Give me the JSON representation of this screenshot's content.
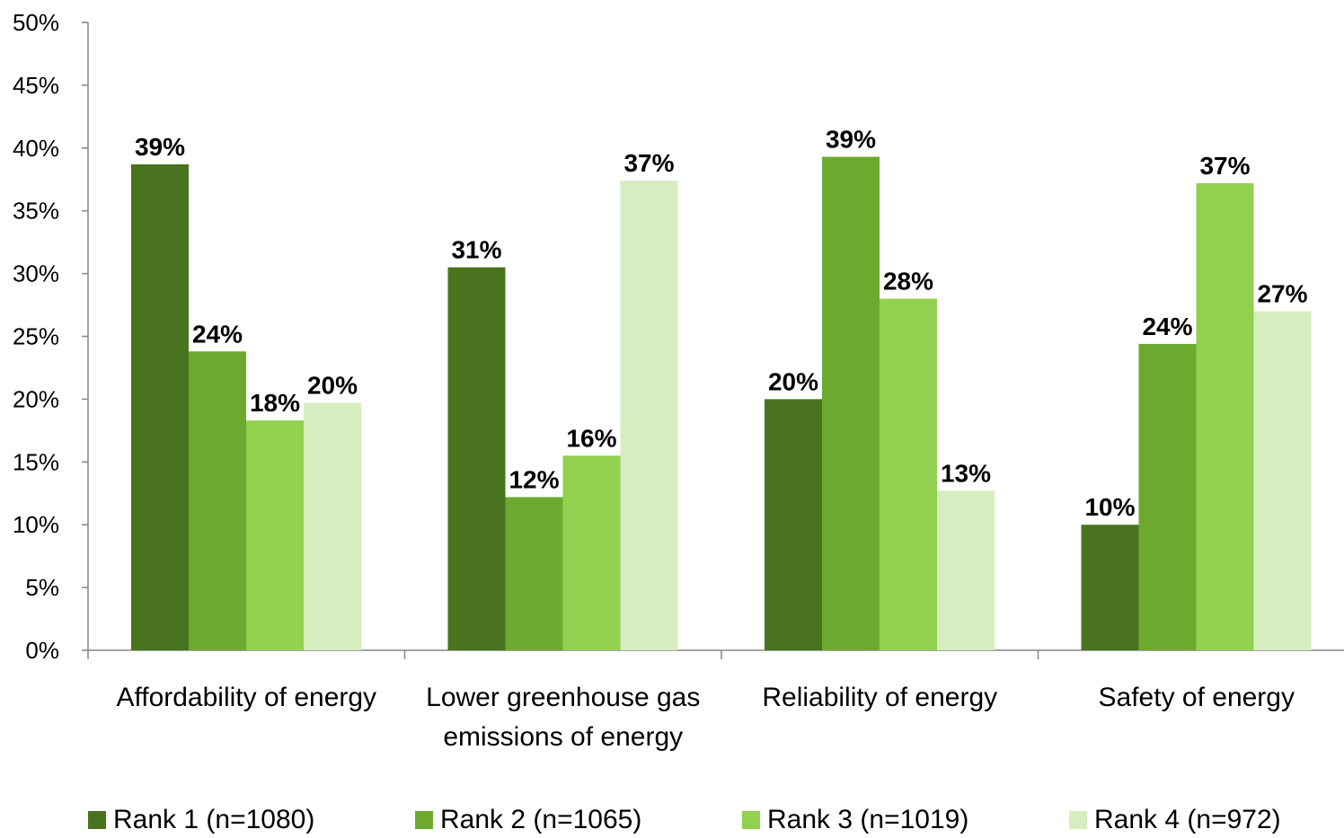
{
  "chart_data": {
    "type": "bar",
    "categories": [
      [
        "Affordability of energy"
      ],
      [
        "Lower greenhouse gas",
        "emissions of energy"
      ],
      [
        "Reliability of energy"
      ],
      [
        "Safety of energy"
      ]
    ],
    "series": [
      {
        "name": "Rank 1 (n=1080)",
        "color": "#4a7320",
        "values": [
          38.7,
          30.5,
          20.0,
          10.0
        ],
        "labels": [
          "39%",
          "31%",
          "20%",
          "10%"
        ]
      },
      {
        "name": "Rank 2 (n=1065)",
        "color": "#6ea92f",
        "values": [
          23.8,
          12.2,
          39.3,
          24.4
        ],
        "labels": [
          "24%",
          "12%",
          "39%",
          "24%"
        ]
      },
      {
        "name": "Rank 3 (n=1019)",
        "color": "#92d050",
        "values": [
          18.3,
          15.5,
          28.0,
          37.2
        ],
        "labels": [
          "18%",
          "16%",
          "28%",
          "37%"
        ]
      },
      {
        "name": "Rank 4 (n=972)",
        "color": "#d6edbf",
        "values": [
          19.7,
          37.4,
          12.7,
          27.0
        ],
        "labels": [
          "20%",
          "37%",
          "13%",
          "27%"
        ]
      }
    ],
    "y_ticks": [
      "0%",
      "5%",
      "10%",
      "15%",
      "20%",
      "25%",
      "30%",
      "35%",
      "40%",
      "45%",
      "50%"
    ],
    "ylim": [
      0,
      50
    ],
    "grid": false,
    "legend_position": "bottom"
  }
}
